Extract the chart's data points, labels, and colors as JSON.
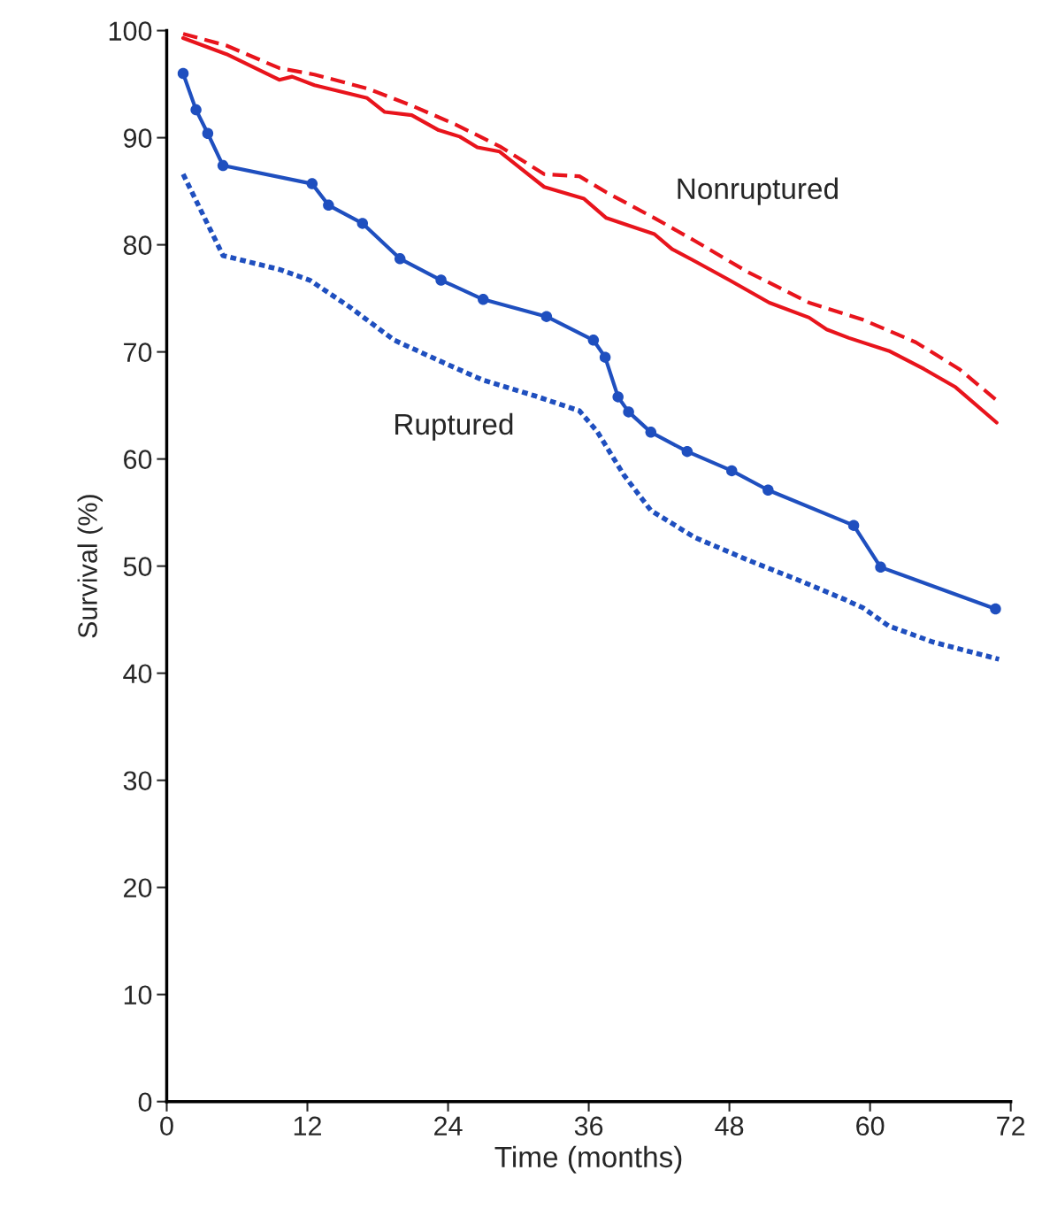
{
  "chart_data": {
    "type": "line",
    "xlabel": "Time (months)",
    "ylabel": "Survival (%)",
    "xlim": [
      0,
      72
    ],
    "ylim": [
      0,
      100
    ],
    "xticks": [
      0,
      12,
      24,
      36,
      48,
      60,
      72
    ],
    "yticks": [
      0,
      10,
      20,
      30,
      40,
      50,
      60,
      70,
      80,
      90,
      100
    ],
    "grid": false,
    "legend": false,
    "annotations": [
      "Nonruptured",
      "Ruptured"
    ],
    "series": [
      {
        "color": "#e8141c",
        "line_style": "dashed",
        "marker": "none",
        "x": [
          1.4,
          5.1,
          9.6,
          12.6,
          17.1,
          20.9,
          24.7,
          28.4,
          32.2,
          35.2,
          37.5,
          41.6,
          45.0,
          49.5,
          54.8,
          59.4,
          63.9,
          67.6,
          71.0
        ],
        "values": [
          99.7,
          98.6,
          96.5,
          95.9,
          94.6,
          93.0,
          91.2,
          89.2,
          86.6,
          86.4,
          84.9,
          82.5,
          80.4,
          77.5,
          74.6,
          73.0,
          70.9,
          68.4,
          65.3
        ]
      },
      {
        "color": "#e8141c",
        "line_style": "solid",
        "marker": "none",
        "x": [
          1.4,
          5.1,
          9.6,
          10.7,
          12.6,
          17.1,
          18.6,
          20.9,
          23.2,
          25.0,
          26.5,
          28.4,
          29.9,
          32.2,
          35.6,
          37.5,
          41.6,
          43.1,
          45.0,
          48.0,
          51.4,
          54.8,
          56.3,
          58.2,
          61.6,
          64.6,
          67.3,
          70.8
        ],
        "values": [
          99.3,
          97.8,
          95.4,
          95.7,
          94.9,
          93.7,
          92.4,
          92.1,
          90.7,
          90.1,
          89.1,
          88.7,
          87.4,
          85.4,
          84.3,
          82.5,
          81.0,
          79.6,
          78.5,
          76.7,
          74.6,
          73.2,
          72.1,
          71.3,
          70.1,
          68.4,
          66.7,
          63.4
        ]
      },
      {
        "color": "#1f4fbf",
        "line_style": "dotted",
        "marker": "none",
        "x": [
          1.4,
          4.8,
          9.6,
          12.2,
          15.6,
          19.4,
          23.2,
          26.9,
          31.4,
          35.2,
          36.7,
          39.0,
          41.3,
          45.0,
          49.5,
          54.1,
          57.8,
          59.4,
          61.6,
          65.4,
          71.0
        ],
        "values": [
          86.6,
          79.0,
          77.7,
          76.7,
          74.2,
          71.1,
          69.2,
          67.4,
          65.9,
          64.5,
          62.6,
          58.5,
          55.2,
          52.7,
          50.6,
          48.6,
          46.9,
          46.1,
          44.4,
          42.9,
          41.3
        ]
      },
      {
        "color": "#1f4fbf",
        "line_style": "solid",
        "marker": "circle",
        "x": [
          1.4,
          2.5,
          3.5,
          4.8,
          12.4,
          13.8,
          16.7,
          19.9,
          23.4,
          27.0,
          32.4,
          36.4,
          37.4,
          38.5,
          39.4,
          41.3,
          44.4,
          48.2,
          51.3,
          58.6,
          60.9,
          70.7
        ],
        "values": [
          96.0,
          92.6,
          90.4,
          87.4,
          85.7,
          83.7,
          82.0,
          78.7,
          76.7,
          74.9,
          73.3,
          71.1,
          69.5,
          65.8,
          64.4,
          62.5,
          60.7,
          58.9,
          57.1,
          53.8,
          49.9,
          46.0
        ]
      }
    ]
  }
}
